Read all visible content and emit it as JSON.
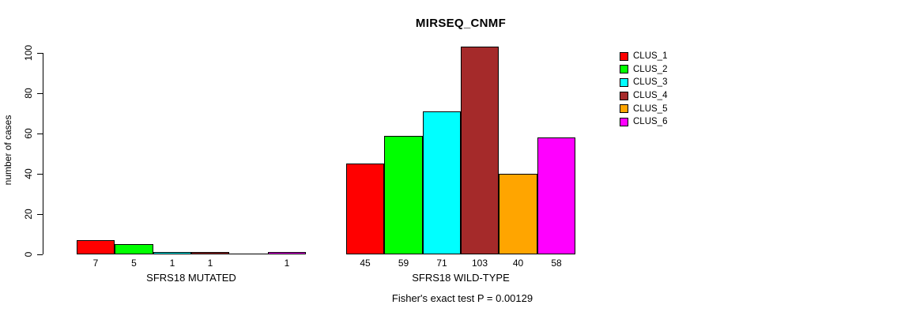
{
  "chart_data": {
    "type": "bar",
    "title": "MIRSEQ_CNMF",
    "ylabel": "number of cases",
    "ylim": [
      0,
      100
    ],
    "yticks": [
      0,
      20,
      40,
      60,
      80,
      100
    ],
    "grid": false,
    "legend_position": "top-right",
    "clusters": [
      {
        "name": "CLUS_1",
        "color": "#ff0000"
      },
      {
        "name": "CLUS_2",
        "color": "#00ff00"
      },
      {
        "name": "CLUS_3",
        "color": "#00ffff"
      },
      {
        "name": "CLUS_4",
        "color": "#a52a2a"
      },
      {
        "name": "CLUS_5",
        "color": "#ffa500"
      },
      {
        "name": "CLUS_6",
        "color": "#ff00ff"
      }
    ],
    "groups": [
      {
        "label": "SFRS18 MUTATED",
        "values": [
          7,
          5,
          1,
          1,
          0,
          1
        ],
        "bar_labels": [
          "7",
          "5",
          "1",
          "1",
          "",
          "1"
        ]
      },
      {
        "label": "SFRS18 WILD-TYPE",
        "values": [
          45,
          59,
          71,
          103,
          40,
          58
        ],
        "bar_labels": [
          "45",
          "59",
          "71",
          "103",
          "40",
          "58"
        ]
      }
    ],
    "annotation": "Fisher's exact test P = 0.00129",
    "axis_color": "#000000",
    "background_color": "#ffffff"
  }
}
